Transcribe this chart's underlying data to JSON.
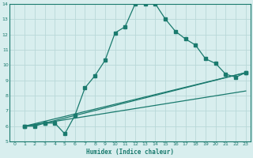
{
  "xlabel": "Humidex (Indice chaleur)",
  "background_color": "#d8eeee",
  "grid_color": "#b8d8d8",
  "line_color": "#1a7a6e",
  "xlim": [
    -0.5,
    23.5
  ],
  "ylim": [
    5,
    14
  ],
  "yticks": [
    5,
    6,
    7,
    8,
    9,
    10,
    11,
    12,
    13,
    14
  ],
  "xticks": [
    0,
    1,
    2,
    3,
    4,
    5,
    6,
    7,
    8,
    9,
    10,
    11,
    12,
    13,
    14,
    15,
    16,
    17,
    18,
    19,
    20,
    21,
    22,
    23
  ],
  "series1_x": [
    1,
    2,
    3,
    4,
    5,
    6,
    7,
    8,
    9,
    10,
    11,
    12,
    13,
    14,
    15,
    16,
    17,
    18,
    19,
    20,
    21,
    22,
    23
  ],
  "series1_y": [
    6.0,
    6.0,
    6.2,
    6.2,
    5.5,
    6.7,
    8.5,
    9.3,
    10.3,
    12.1,
    12.5,
    14.0,
    14.0,
    14.0,
    13.0,
    12.2,
    11.7,
    11.3,
    10.4,
    10.1,
    9.4,
    9.2,
    9.5
  ],
  "series2_x": [
    1,
    23
  ],
  "series2_y": [
    6.0,
    9.5
  ],
  "series3_x": [
    1,
    23
  ],
  "series3_y": [
    6.0,
    8.3
  ],
  "series4_x": [
    1,
    3,
    23
  ],
  "series4_y": [
    6.0,
    6.2,
    9.5
  ]
}
